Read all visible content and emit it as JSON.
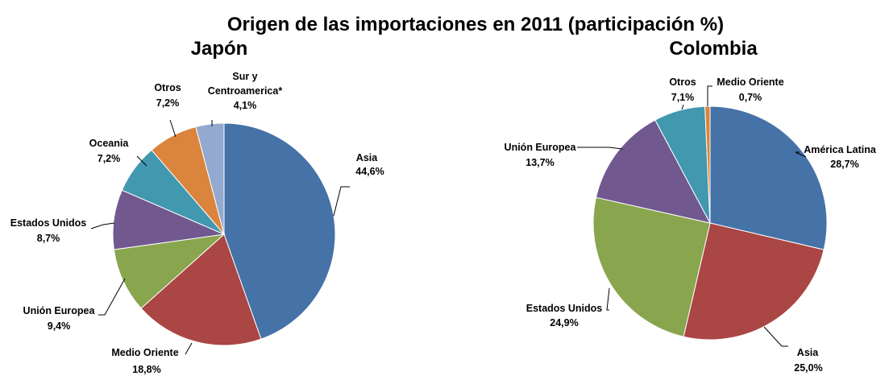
{
  "title": "Origen de las importaciones en 2011 (participación %)",
  "chart_data": [
    {
      "type": "pie",
      "title": "Japón",
      "slices": [
        {
          "label": "Asia",
          "value_label": "44,6%",
          "value": 44.6,
          "color": "#4572A7"
        },
        {
          "label": "Medio Oriente",
          "value_label": "18,8%",
          "value": 18.8,
          "color": "#AA4643"
        },
        {
          "label": "Unión Europea",
          "value_label": "9,4%",
          "value": 9.4,
          "color": "#89A54E"
        },
        {
          "label": "Estados Unidos",
          "value_label": "8,7%",
          "value": 8.7,
          "color": "#71588F"
        },
        {
          "label": "Oceania",
          "value_label": "7,2%",
          "value": 7.2,
          "color": "#4198AF"
        },
        {
          "label": "Otros",
          "value_label": "7,2%",
          "value": 7.2,
          "color": "#DB843D"
        },
        {
          "label": "Sur y Centroamerica*",
          "value_label": "4,1%",
          "value": 4.1,
          "color": "#93A9CF"
        }
      ]
    },
    {
      "type": "pie",
      "title": "Colombia",
      "slices": [
        {
          "label": "América Latina",
          "value_label": "28,7%",
          "value": 28.7,
          "color": "#4572A7"
        },
        {
          "label": "Asia",
          "value_label": "25,0%",
          "value": 25.0,
          "color": "#AA4643"
        },
        {
          "label": "Estados Unidos",
          "value_label": "24,9%",
          "value": 24.9,
          "color": "#89A54E"
        },
        {
          "label": "Unión Europea",
          "value_label": "13,7%",
          "value": 13.7,
          "color": "#71588F"
        },
        {
          "label": "Otros",
          "value_label": "7,1%",
          "value": 7.1,
          "color": "#4198AF"
        },
        {
          "label": "Medio Oriente",
          "value_label": "0,7%",
          "value": 0.7,
          "color": "#DB843D"
        }
      ]
    }
  ]
}
